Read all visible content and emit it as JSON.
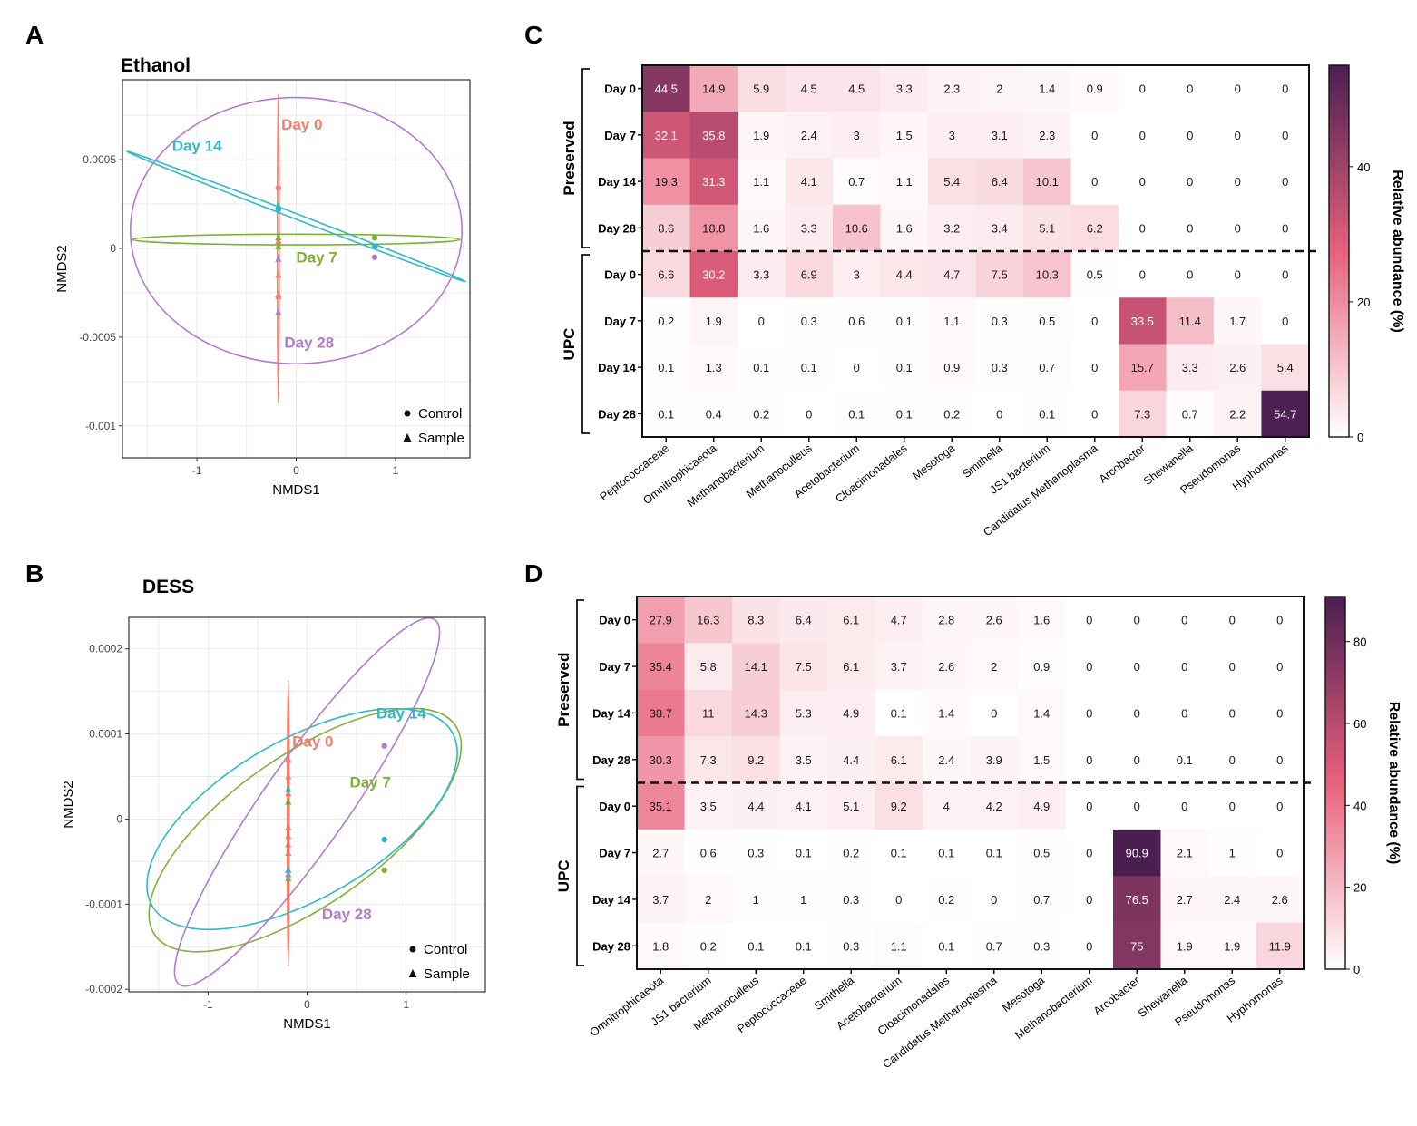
{
  "panel_letters": {
    "a": "A",
    "b": "B",
    "c": "C",
    "d": "D"
  },
  "colors": {
    "day0": "#f07f6e",
    "day7": "#7fb13a",
    "day14": "#2fbac6",
    "day28": "#b27ccc",
    "heat_low": "#ffffff",
    "heat_mid": "#e8627c",
    "heat_high": "#4b1e52"
  },
  "chart_data": [
    {
      "panel": "A",
      "type": "scatter",
      "title": "Ethanol",
      "xlabel": "NMDS1",
      "ylabel": "NMDS2",
      "xlim": [
        -1.75,
        1.75
      ],
      "ylim": [
        -0.00118,
        0.00095
      ],
      "xticks": [
        -1,
        0,
        1
      ],
      "xtick_labels": [
        "-1",
        "0",
        "1"
      ],
      "yticks": [
        -0.001,
        -0.0005,
        0,
        0.0005
      ],
      "ytick_labels": [
        "-0.001",
        "-0.0005",
        "0",
        "0.0005"
      ],
      "grid": true,
      "legend": {
        "position": "bottom-right",
        "entries": [
          {
            "label": "Control",
            "shape": "circle"
          },
          {
            "label": "Sample",
            "shape": "triangle"
          }
        ]
      },
      "groups": [
        {
          "key": "day0",
          "label": "Day 0",
          "label_at": [
            -0.15,
            0.00067
          ],
          "ellipse": {
            "cx": -0.18,
            "cy": 0,
            "rx": 0.006,
            "ry": 0.00087,
            "angle": 0
          },
          "points": [
            {
              "x": -0.18,
              "y": 0.00034,
              "shape": "circle"
            },
            {
              "x": -0.18,
              "y": 4e-05,
              "shape": "triangle"
            },
            {
              "x": -0.18,
              "y": -0.00015,
              "shape": "triangle"
            },
            {
              "x": -0.18,
              "y": -0.00026,
              "shape": "triangle"
            },
            {
              "x": -0.18,
              "y": -0.00027,
              "shape": "triangle"
            }
          ]
        },
        {
          "key": "day7",
          "label": "Day 7",
          "label_at": [
            0.0,
            -8e-05
          ],
          "ellipse": {
            "cx": 0.0,
            "cy": 5e-05,
            "rx": 1.65,
            "ry": 3e-05,
            "angle": 0
          },
          "points": [
            {
              "x": 0.79,
              "y": 6e-05,
              "shape": "circle"
            },
            {
              "x": -0.18,
              "y": 6e-05,
              "shape": "triangle"
            },
            {
              "x": -0.18,
              "y": 1e-05,
              "shape": "triangle"
            }
          ]
        },
        {
          "key": "day14",
          "label": "Day 14",
          "label_at": [
            -1.25,
            0.00055
          ],
          "ellipse": {
            "cx": 0.0,
            "cy": 0.00018,
            "rx": 1.7,
            "ry": 1.5e-05,
            "angle": 0,
            "slope": -0.000215
          },
          "points": [
            {
              "x": -0.18,
              "y": 0.00022,
              "shape": "circle"
            },
            {
              "x": -0.18,
              "y": 0.00024,
              "shape": "triangle"
            },
            {
              "x": 0.79,
              "y": 1e-05,
              "shape": "circle"
            }
          ]
        },
        {
          "key": "day28",
          "label": "Day 28",
          "label_at": [
            -0.12,
            -0.00056
          ],
          "ellipse": {
            "cx": 0.0,
            "cy": 0.0001,
            "rx": 1.67,
            "ry": 0.00075,
            "angle": 0
          },
          "points": [
            {
              "x": 0.79,
              "y": -5e-05,
              "shape": "circle"
            },
            {
              "x": -0.18,
              "y": -6e-05,
              "shape": "triangle"
            },
            {
              "x": -0.18,
              "y": -0.00036,
              "shape": "triangle"
            }
          ]
        }
      ]
    },
    {
      "panel": "B",
      "type": "scatter",
      "title": "DESS",
      "xlabel": "NMDS1",
      "ylabel": "NMDS2",
      "xlim": [
        -1.8,
        1.8
      ],
      "ylim": [
        -0.000203,
        0.000237
      ],
      "xticks": [
        -1,
        0,
        1
      ],
      "xtick_labels": [
        "-1",
        "0",
        "1"
      ],
      "yticks": [
        -0.0002,
        -0.0001,
        0,
        0.0001,
        0.0002
      ],
      "ytick_labels": [
        "-0.0002",
        "-0.0001",
        "0",
        "0.0001",
        "0.0002"
      ],
      "grid": true,
      "legend": {
        "position": "bottom-right",
        "entries": [
          {
            "label": "Control",
            "shape": "circle"
          },
          {
            "label": "Sample",
            "shape": "triangle"
          }
        ]
      },
      "groups": [
        {
          "key": "day0",
          "label": "Day 0",
          "label_at": [
            -0.15,
            8.5e-05
          ],
          "ellipse": {
            "cx": -0.19,
            "cy": -5e-06,
            "rx": 0.006,
            "ry": 0.000168,
            "angle": 0
          },
          "points": [
            {
              "x": -0.19,
              "y": 7e-05,
              "shape": "triangle"
            },
            {
              "x": -0.19,
              "y": 5e-05,
              "shape": "triangle"
            },
            {
              "x": -0.19,
              "y": 3e-05,
              "shape": "triangle"
            },
            {
              "x": -0.19,
              "y": -1e-05,
              "shape": "triangle"
            },
            {
              "x": -0.19,
              "y": -2e-05,
              "shape": "triangle"
            },
            {
              "x": -0.19,
              "y": -3e-05,
              "shape": "triangle"
            },
            {
              "x": -0.19,
              "y": -4e-05,
              "shape": "triangle"
            },
            {
              "x": -0.19,
              "y": -6e-05,
              "shape": "triangle"
            }
          ]
        },
        {
          "key": "day7",
          "label": "Day 7",
          "label_at": [
            0.43,
            3.7e-05
          ],
          "ellipse": {
            "cx": -0.02,
            "cy": -1.3e-05,
            "rx": 1.85,
            "ry": 8.8e-05,
            "angle": 35
          },
          "points": [
            {
              "x": 0.78,
              "y": -6e-05,
              "shape": "circle"
            },
            {
              "x": -0.19,
              "y": 2e-05,
              "shape": "triangle"
            },
            {
              "x": -0.19,
              "y": -7e-05,
              "shape": "triangle"
            }
          ]
        },
        {
          "key": "day14",
          "label": "Day 14",
          "label_at": [
            0.7,
            0.000118
          ],
          "ellipse": {
            "cx": -0.05,
            "cy": 0.0,
            "rx": 1.75,
            "ry": 9.3e-05,
            "angle": 30
          },
          "points": [
            {
              "x": 0.78,
              "y": -2.4e-05,
              "shape": "circle"
            },
            {
              "x": -0.19,
              "y": 3.5e-05,
              "shape": "triangle"
            },
            {
              "x": -0.19,
              "y": -6e-05,
              "shape": "triangle"
            }
          ]
        },
        {
          "key": "day28",
          "label": "Day 28",
          "label_at": [
            0.15,
            -0.000118
          ],
          "ellipse": {
            "cx": 0.0,
            "cy": 2e-05,
            "rx": 2.25,
            "ry": 5e-05,
            "angle": 55
          },
          "points": [
            {
              "x": 0.78,
              "y": 8.6e-05,
              "shape": "circle"
            },
            {
              "x": -0.19,
              "y": -6.5e-05,
              "shape": "triangle"
            }
          ]
        }
      ]
    },
    {
      "panel": "C",
      "type": "heatmap",
      "columns": [
        "Peptococcaceae",
        "Omnitrophicaeota",
        "Methanobacterium",
        "Methanoculleus",
        "Acetobacterium",
        "Cloacimonadales",
        "Mesotoga",
        "Smithella",
        "JS1 bacterium",
        "Candidatus Methanoplasma",
        "Arcobacter",
        "Shewanella",
        "Pseudomonas",
        "Hyphomonas"
      ],
      "groups": [
        {
          "label": "Preserved",
          "rows": [
            "Day 0",
            "Day 7",
            "Day 14",
            "Day 28"
          ]
        },
        {
          "label": "UPC",
          "rows": [
            "Day 0",
            "Day 7",
            "Day 14",
            "Day 28"
          ]
        }
      ],
      "values": [
        [
          44.5,
          14.9,
          5.9,
          4.5,
          4.5,
          3.3,
          2.3,
          2.0,
          1.4,
          0.9,
          0,
          0,
          0,
          0
        ],
        [
          32.1,
          35.8,
          1.9,
          2.4,
          3.0,
          1.5,
          3.0,
          3.1,
          2.3,
          0,
          0,
          0,
          0,
          0
        ],
        [
          19.3,
          31.3,
          1.1,
          4.1,
          0.7,
          1.1,
          5.4,
          6.4,
          10.1,
          0,
          0,
          0,
          0,
          0
        ],
        [
          8.6,
          18.8,
          1.6,
          3.3,
          10.6,
          1.6,
          3.2,
          3.4,
          5.1,
          6.2,
          0,
          0,
          0,
          0
        ],
        [
          6.6,
          30.2,
          3.3,
          6.9,
          3.0,
          4.4,
          4.7,
          7.5,
          10.3,
          0.5,
          0,
          0,
          0,
          0
        ],
        [
          0.2,
          1.9,
          0,
          0.3,
          0.6,
          0.1,
          1.1,
          0.3,
          0.5,
          0,
          33.5,
          11.4,
          1.7,
          0
        ],
        [
          0.1,
          1.3,
          0.1,
          0.1,
          0,
          0.1,
          0.9,
          0.3,
          0.7,
          0,
          15.7,
          3.3,
          2.6,
          5.4
        ],
        [
          0.1,
          0.4,
          0.2,
          0,
          0.1,
          0.1,
          0.2,
          0,
          0.1,
          0,
          7.3,
          0.7,
          2.2,
          54.7
        ]
      ],
      "colorbar": {
        "label": "Relative abundance (%)",
        "range": [
          0,
          55
        ],
        "ticks": [
          0,
          20,
          40
        ],
        "tick_labels": [
          "0",
          "20",
          "40"
        ]
      }
    },
    {
      "panel": "D",
      "type": "heatmap",
      "columns": [
        "Omnitrophicaeota",
        "JS1 bacterium",
        "Methanoculleus",
        "Peptococcaceae",
        "Smithella",
        "Acetobacterium",
        "Cloacimonadales",
        "Candidatus Methanoplasma",
        "Mesotoga",
        "Methanobacterium",
        "Arcobacter",
        "Shewanella",
        "Pseudomonas",
        "Hyphomonas"
      ],
      "groups": [
        {
          "label": "Preserved",
          "rows": [
            "Day 0",
            "Day 7",
            "Day 14",
            "Day 28"
          ]
        },
        {
          "label": "UPC",
          "rows": [
            "Day 0",
            "Day 7",
            "Day 14",
            "Day 28"
          ]
        }
      ],
      "values": [
        [
          27.9,
          16.3,
          8.3,
          6.4,
          6.1,
          4.7,
          2.8,
          2.6,
          1.6,
          0,
          0,
          0,
          0,
          0
        ],
        [
          35.4,
          5.8,
          14.1,
          7.5,
          6.1,
          3.7,
          2.6,
          2.0,
          0.9,
          0,
          0,
          0,
          0,
          0
        ],
        [
          38.7,
          11.0,
          14.3,
          5.3,
          4.9,
          0.1,
          1.4,
          0,
          1.4,
          0,
          0,
          0,
          0,
          0
        ],
        [
          30.3,
          7.3,
          9.2,
          3.5,
          4.4,
          6.1,
          2.4,
          3.9,
          1.5,
          0,
          0,
          0.1,
          0,
          0
        ],
        [
          35.1,
          3.5,
          4.4,
          4.1,
          5.1,
          9.2,
          4.0,
          4.2,
          4.9,
          0,
          0,
          0,
          0,
          0
        ],
        [
          2.7,
          0.6,
          0.3,
          0.1,
          0.2,
          0.1,
          0.1,
          0.1,
          0.5,
          0,
          90.9,
          2.1,
          1.0,
          0
        ],
        [
          3.7,
          2.0,
          1.0,
          1.0,
          0.3,
          0,
          0.2,
          0,
          0.7,
          0,
          76.5,
          2.7,
          2.4,
          2.6
        ],
        [
          1.8,
          0.2,
          0.1,
          0.1,
          0.3,
          1.1,
          0.1,
          0.7,
          0.3,
          0,
          75.0,
          1.9,
          1.9,
          11.9
        ]
      ],
      "colorbar": {
        "label": "Relative abundance (%)",
        "range": [
          0,
          91
        ],
        "ticks": [
          0,
          20,
          40,
          60,
          80
        ],
        "tick_labels": [
          "0",
          "20",
          "40",
          "60",
          "80"
        ]
      }
    }
  ]
}
